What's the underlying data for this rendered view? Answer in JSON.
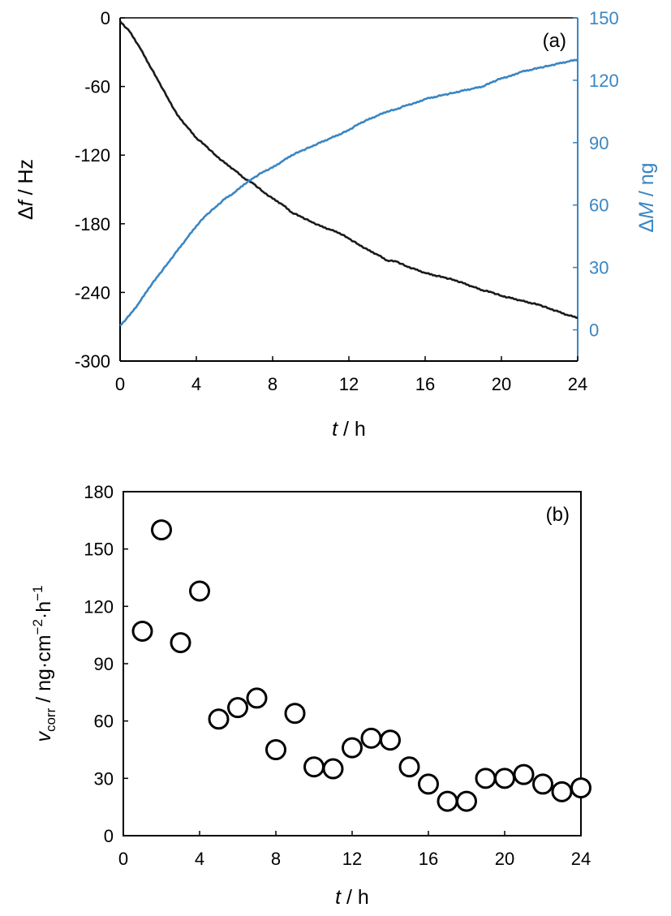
{
  "colors": {
    "black": "#1a1a1a",
    "blue": "#3a86c3",
    "axis": "#000000"
  },
  "chart_data": [
    {
      "type": "line",
      "panel_label": "(a)",
      "x_label": {
        "italic": "t",
        "rest": " / h"
      },
      "y_label": {
        "prefix": "Δ",
        "italic": "f",
        "rest": " / Hz"
      },
      "y2_label": {
        "prefix": "Δ",
        "italic": "M",
        "rest": " / ng"
      },
      "xlim": [
        0,
        24
      ],
      "ylim": [
        -300,
        0
      ],
      "y2lim": [
        -15,
        150
      ],
      "x_ticks": [
        "0",
        "4",
        "8",
        "12",
        "16",
        "20",
        "24"
      ],
      "y_ticks": [
        "0",
        "-60",
        "-120",
        "-180",
        "-240",
        "-300"
      ],
      "y2_ticks": [
        "150",
        "120",
        "90",
        "60",
        "30",
        "0"
      ],
      "grid": false,
      "series": [
        {
          "axis": "left",
          "color": "#1a1a1a",
          "x": [
            0,
            0.5,
            1,
            1.5,
            2,
            2.5,
            3,
            3.5,
            4,
            4.5,
            5,
            5.5,
            6,
            6.5,
            7,
            7.5,
            8,
            8.5,
            9,
            9.5,
            10,
            10.5,
            11,
            11.5,
            12,
            12.5,
            13,
            13.5,
            14,
            14.5,
            15,
            15.5,
            16,
            16.5,
            17,
            17.5,
            18,
            18.5,
            19,
            19.5,
            20,
            20.5,
            21,
            21.5,
            22,
            22.5,
            23,
            23.5,
            24
          ],
          "y": [
            -3,
            -12,
            -25,
            -40,
            -55,
            -70,
            -85,
            -95,
            -105,
            -112,
            -120,
            -127,
            -133,
            -140,
            -145,
            -152,
            -158,
            -163,
            -170,
            -174,
            -178,
            -182,
            -185,
            -188,
            -193,
            -198,
            -203,
            -207,
            -212,
            -213,
            -217,
            -220,
            -223,
            -225,
            -227,
            -229,
            -232,
            -235,
            -238,
            -240,
            -243,
            -245,
            -247,
            -249,
            -251,
            -254,
            -257,
            -260,
            -262
          ]
        },
        {
          "axis": "right",
          "color": "#3a86c3",
          "x": [
            0,
            0.5,
            1,
            1.5,
            2,
            2.5,
            3,
            3.5,
            4,
            4.5,
            5,
            5.5,
            6,
            6.5,
            7,
            7.5,
            8,
            8.5,
            9,
            9.5,
            10,
            10.5,
            11,
            11.5,
            12,
            12.5,
            13,
            13.5,
            14,
            14.5,
            15,
            15.5,
            16,
            16.5,
            17,
            17.5,
            18,
            18.5,
            19,
            19.5,
            20,
            20.5,
            21,
            21.5,
            22,
            22.5,
            23,
            23.5,
            24
          ],
          "y": [
            2,
            7,
            13,
            20,
            26,
            32,
            38,
            44,
            50,
            55,
            59,
            63,
            66,
            70,
            73,
            76,
            78,
            81,
            84,
            86,
            88,
            90,
            92,
            94,
            96,
            99,
            101,
            103,
            105,
            106,
            108,
            109,
            111,
            112,
            113,
            114,
            115,
            116,
            117,
            119,
            121,
            122,
            124,
            125,
            126,
            127,
            128,
            129,
            130
          ]
        }
      ]
    },
    {
      "type": "scatter",
      "panel_label": "(b)",
      "x_label": {
        "italic": "t",
        "rest": " / h"
      },
      "y_label": {
        "italic": "v",
        "subscript": "corr",
        "rest": " / ng·cm",
        "sup1": "−2",
        "mid": "·h",
        "sup2": "−1"
      },
      "xlim": [
        0,
        24
      ],
      "ylim": [
        0,
        180
      ],
      "x_ticks": [
        "0",
        "4",
        "8",
        "12",
        "16",
        "20",
        "24"
      ],
      "y_ticks": [
        "0",
        "30",
        "60",
        "90",
        "120",
        "150",
        "180"
      ],
      "grid": false,
      "marker": "open-circle",
      "series": [
        {
          "x": [
            1,
            2,
            3,
            4,
            5,
            6,
            7,
            8,
            9,
            10,
            11,
            12,
            13,
            14,
            15,
            16,
            17,
            18,
            19,
            20,
            21,
            22,
            23,
            24
          ],
          "y": [
            107,
            160,
            101,
            128,
            61,
            67,
            72,
            45,
            64,
            36,
            35,
            46,
            51,
            50,
            36,
            27,
            18,
            18,
            30,
            30,
            32,
            27,
            23,
            25
          ]
        }
      ]
    }
  ]
}
